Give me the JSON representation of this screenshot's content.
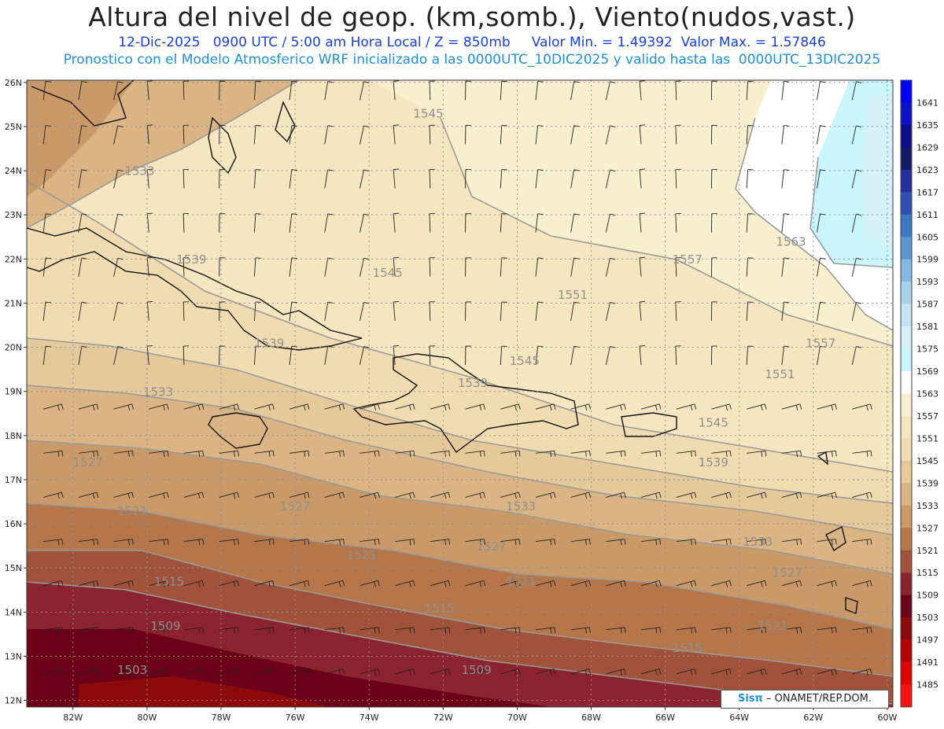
{
  "header": {
    "title": "Altura del nivel de geop. (km,somb.), Viento(nudos,vast.)",
    "line1": "12-Dic-2025   0900 UTC / 5:00 am Hora Local / Z = 850mb     Valor Min. = 1.49392  Valor Max. = 1.57846",
    "line2": "Pronostico con el Modelo Atmosferico WRF inicializado a las 0000UTC_10DIC2025 y valido hasta las  0000UTC_13DIC2025"
  },
  "map": {
    "lat_labels": [
      "26N",
      "25N",
      "24N",
      "23N",
      "22N",
      "21N",
      "20N",
      "19N",
      "18N",
      "17N",
      "16N",
      "15N",
      "14N",
      "13N",
      "12N"
    ],
    "lon_labels": [
      "82W",
      "80W",
      "78W",
      "76W",
      "74W",
      "72W",
      "70W",
      "68W",
      "66W",
      "64W",
      "62W",
      "60W"
    ],
    "contour_labels": [
      {
        "text": "1545",
        "lon": -72.4,
        "lat": 25.2
      },
      {
        "text": "1533",
        "lon": -80.2,
        "lat": 23.9
      },
      {
        "text": "1539",
        "lon": -78.8,
        "lat": 21.9
      },
      {
        "text": "1545",
        "lon": -73.5,
        "lat": 21.6
      },
      {
        "text": "1551",
        "lon": -68.5,
        "lat": 21.1
      },
      {
        "text": "1557",
        "lon": -65.4,
        "lat": 21.9
      },
      {
        "text": "1563",
        "lon": -62.6,
        "lat": 22.3
      },
      {
        "text": "1539",
        "lon": -76.7,
        "lat": 20.0
      },
      {
        "text": "1545",
        "lon": -69.8,
        "lat": 19.6
      },
      {
        "text": "1539",
        "lon": -71.2,
        "lat": 19.1
      },
      {
        "text": "1557",
        "lon": -61.8,
        "lat": 20.0
      },
      {
        "text": "1551",
        "lon": -62.9,
        "lat": 19.3
      },
      {
        "text": "1533",
        "lon": -79.7,
        "lat": 18.9
      },
      {
        "text": "1545",
        "lon": -64.7,
        "lat": 18.2
      },
      {
        "text": "1539",
        "lon": -64.7,
        "lat": 17.3
      },
      {
        "text": "1527",
        "lon": -81.6,
        "lat": 17.3
      },
      {
        "text": "1527",
        "lon": -76.0,
        "lat": 16.3
      },
      {
        "text": "1533",
        "lon": -69.9,
        "lat": 16.3
      },
      {
        "text": "1521",
        "lon": -80.4,
        "lat": 16.2
      },
      {
        "text": "1527",
        "lon": -70.7,
        "lat": 15.4
      },
      {
        "text": "1533",
        "lon": -63.5,
        "lat": 15.5
      },
      {
        "text": "1521",
        "lon": -74.2,
        "lat": 15.2
      },
      {
        "text": "1527",
        "lon": -62.7,
        "lat": 14.8
      },
      {
        "text": "1515",
        "lon": -79.4,
        "lat": 14.6
      },
      {
        "text": "1521",
        "lon": -69.9,
        "lat": 14.6
      },
      {
        "text": "1515",
        "lon": -72.1,
        "lat": 14.0
      },
      {
        "text": "1509",
        "lon": -79.5,
        "lat": 13.6
      },
      {
        "text": "1521",
        "lon": -63.1,
        "lat": 13.6
      },
      {
        "text": "1515",
        "lon": -65.4,
        "lat": 13.1
      },
      {
        "text": "1503",
        "lon": -80.4,
        "lat": 12.6
      },
      {
        "text": "1509",
        "lon": -71.1,
        "lat": 12.6
      }
    ]
  },
  "colorbar": {
    "levels": [
      "1641",
      "1635",
      "1629",
      "1623",
      "1617",
      "1611",
      "1605",
      "1599",
      "1593",
      "1587",
      "1581",
      "1575",
      "1569",
      "1563",
      "1557",
      "1551",
      "1545",
      "1539",
      "1533",
      "1527",
      "1521",
      "1515",
      "1509",
      "1503",
      "1497",
      "1491",
      "1485"
    ],
    "colors": [
      "#0000ff",
      "#0a12c8",
      "#100d8a",
      "#141866",
      "#23309c",
      "#3052b8",
      "#3d78c4",
      "#5c96d2",
      "#84b8e0",
      "#a8d2ea",
      "#c2e4f2",
      "#d6f0f8",
      "#c9f6fc",
      "#ffffff",
      "#f8efcf",
      "#f5e6bf",
      "#f0dcb0",
      "#e6c99a",
      "#dab583",
      "#c99a68",
      "#b5774a",
      "#a0523a",
      "#8c2430",
      "#6b0018",
      "#8c0a0a",
      "#b80000",
      "#e00000",
      "#ff1010"
    ]
  },
  "credit": {
    "sis": "Sisπ",
    "rest": " – ONAMET/REP.DOM."
  }
}
